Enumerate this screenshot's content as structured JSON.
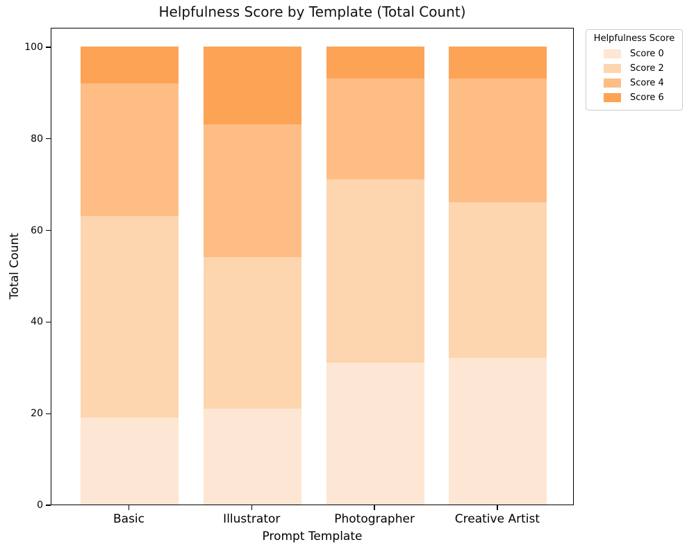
{
  "chart_data": {
    "type": "bar",
    "stacked": true,
    "title": "Helpfulness Score by Template (Total Count)",
    "xlabel": "Prompt Template",
    "ylabel": "Total Count",
    "categories": [
      "Basic",
      "Illustrator",
      "Photographer",
      "Creative Artist"
    ],
    "series": [
      {
        "name": "Score 0",
        "color": "#fde6d3",
        "values": [
          19,
          21,
          31,
          32
        ]
      },
      {
        "name": "Score 2",
        "color": "#fdd5af",
        "values": [
          44,
          33,
          40,
          34
        ]
      },
      {
        "name": "Score 4",
        "color": "#fdbd85",
        "values": [
          29,
          29,
          22,
          27
        ]
      },
      {
        "name": "Score 6",
        "color": "#fda355",
        "values": [
          8,
          17,
          7,
          7
        ]
      }
    ],
    "totals": [
      100,
      100,
      100,
      100
    ],
    "ylim": [
      0,
      100
    ],
    "yticks": [
      0,
      20,
      40,
      60,
      80,
      100
    ],
    "grid": false,
    "legend": {
      "title": "Helpfulness Score",
      "position": "upper-right-outside"
    },
    "colors": {
      "background": "#ffffff",
      "axis": "#000000",
      "text": "#000000"
    }
  }
}
